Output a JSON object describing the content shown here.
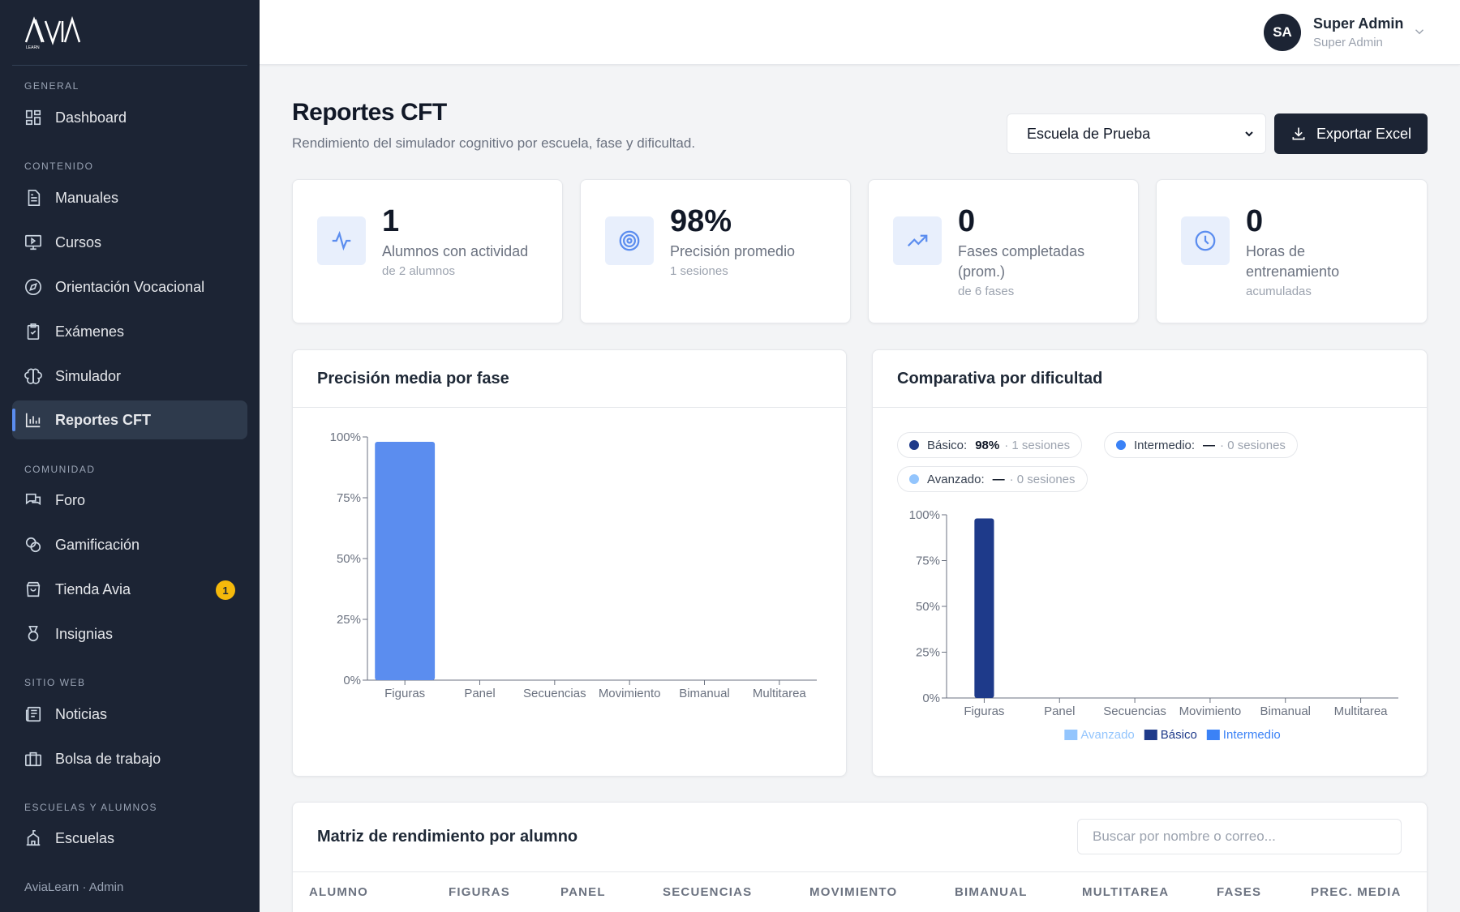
{
  "sidebar": {
    "logo_text": "AVIA",
    "logo_sub": "LEARN",
    "sections": {
      "general": "GENERAL",
      "contenido": "CONTENIDO",
      "comunidad": "COMUNIDAD",
      "sitio_web": "SITIO WEB",
      "escuelas": "ESCUELAS Y ALUMNOS"
    },
    "items": {
      "dashboard": "Dashboard",
      "manuales": "Manuales",
      "cursos": "Cursos",
      "orientacion": "Orientación Vocacional",
      "examenes": "Exámenes",
      "simulador": "Simulador",
      "reportes": "Reportes CFT",
      "foro": "Foro",
      "gamificacion": "Gamificación",
      "tienda": "Tienda Avia",
      "tienda_badge": "1",
      "insignias": "Insignias",
      "noticias": "Noticias",
      "bolsa": "Bolsa de trabajo",
      "escuelas": "Escuelas"
    },
    "footer": "AviaLearn · Admin"
  },
  "topbar": {
    "avatar_initials": "SA",
    "user_name": "Super Admin",
    "user_role": "Super Admin"
  },
  "header": {
    "title": "Reportes CFT",
    "subtitle": "Rendimiento del simulador cognitivo por escuela, fase y dificultad.",
    "school_select_value": "Escuela de Prueba",
    "export_label": "Exportar Excel"
  },
  "stats": [
    {
      "value": "1",
      "label": "Alumnos con actividad",
      "sub": "de 2 alumnos",
      "icon": "activity-icon"
    },
    {
      "value": "98%",
      "label": "Precisión promedio",
      "sub": "1 sesiones",
      "icon": "target-icon"
    },
    {
      "value": "0",
      "label": "Fases completadas (prom.)",
      "sub": "de 6 fases",
      "icon": "trending-up-icon"
    },
    {
      "value": "0",
      "label": "Horas de entrenamiento",
      "sub": "acumuladas",
      "icon": "clock-icon"
    }
  ],
  "charts": {
    "phase_title": "Precisión media por fase",
    "difficulty_title": "Comparativa por dificultad",
    "pills": [
      {
        "label": "Básico:",
        "value": "98%",
        "sessions": "· 1 sesiones",
        "color": "#1e3a8a"
      },
      {
        "label": "Intermedio:",
        "value": "—",
        "sessions": "· 0 sesiones",
        "color": "#3b82f6"
      },
      {
        "label": "Avanzado:",
        "value": "—",
        "sessions": "· 0 sesiones",
        "color": "#93c5fd"
      }
    ]
  },
  "chart_data": [
    {
      "type": "bar",
      "title": "Precisión media por fase",
      "categories": [
        "Figuras",
        "Panel",
        "Secuencias",
        "Movimiento",
        "Bimanual",
        "Multitarea"
      ],
      "values": [
        98,
        0,
        0,
        0,
        0,
        0
      ],
      "yticks": [
        "0%",
        "25%",
        "50%",
        "75%",
        "100%"
      ],
      "ylim": [
        0,
        100
      ],
      "color": "#5b8def"
    },
    {
      "type": "bar",
      "title": "Comparativa por dificultad",
      "categories": [
        "Figuras",
        "Panel",
        "Secuencias",
        "Movimiento",
        "Bimanual",
        "Multitarea"
      ],
      "series": [
        {
          "name": "Avanzado",
          "values": [
            0,
            0,
            0,
            0,
            0,
            0
          ],
          "color": "#93c5fd"
        },
        {
          "name": "Básico",
          "values": [
            98,
            0,
            0,
            0,
            0,
            0
          ],
          "color": "#1e3a8a"
        },
        {
          "name": "Intermedio",
          "values": [
            0,
            0,
            0,
            0,
            0,
            0
          ],
          "color": "#3b82f6"
        }
      ],
      "yticks": [
        "0%",
        "25%",
        "50%",
        "75%",
        "100%"
      ],
      "ylim": [
        0,
        100
      ],
      "legend": "bottom"
    }
  ],
  "matrix": {
    "title": "Matriz de rendimiento por alumno",
    "search_placeholder": "Buscar por nombre o correo...",
    "columns": [
      "ALUMNO",
      "FIGURAS",
      "PANEL",
      "SECUENCIAS",
      "MOVIMIENTO",
      "BIMANUAL",
      "MULTITAREA",
      "FASES",
      "PREC. MEDIA"
    ]
  }
}
